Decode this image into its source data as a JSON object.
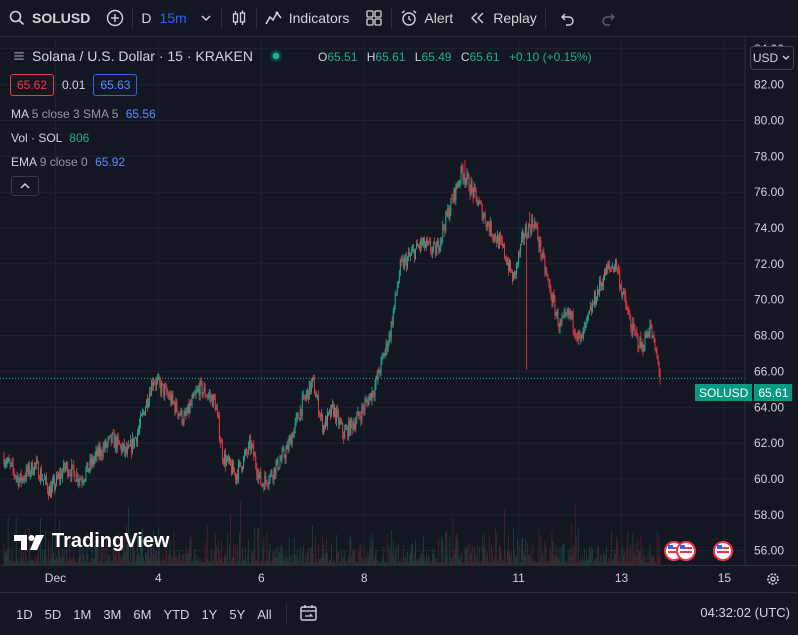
{
  "toolbar": {
    "symbol": "SOLUSD",
    "interval_d": "D",
    "interval_active": "15m",
    "indicators": "Indicators",
    "alert": "Alert",
    "replay": "Replay"
  },
  "legend": {
    "title": "Solana / U.S. Dollar · 15 · KRAKEN",
    "o_label": "O",
    "o": "65.51",
    "h_label": "H",
    "h": "65.61",
    "l_label": "L",
    "l": "65.49",
    "c_label": "C",
    "c": "65.61",
    "change": "+0.10 (+0.15%)",
    "bid": "65.62",
    "spread": "0.01",
    "ask": "65.63",
    "ma_name": "MA",
    "ma_params": "5 close 3 SMA 5",
    "ma_value": "65.56",
    "vol_name": "Vol · SOL",
    "vol_value": "806",
    "ema_name": "EMA",
    "ema_params": "9 close 0",
    "ema_value": "65.92"
  },
  "currency": "USD",
  "price_tag": {
    "symbol": "SOLUSD",
    "price": "65.61"
  },
  "brand": "TradingView",
  "bottombar": {
    "ranges": [
      "1D",
      "5D",
      "1M",
      "3M",
      "6M",
      "YTD",
      "1Y",
      "5Y",
      "All"
    ],
    "clock": "04:32:02 (UTC)"
  },
  "colors": {
    "up": "#22ab94",
    "down": "#f23645",
    "bg": "#131722",
    "grid": "#1f2330",
    "accent": "#2962ff"
  },
  "chart_data": {
    "type": "candlestick",
    "y_ticks": [
      56,
      58,
      60,
      62,
      64,
      66,
      68,
      70,
      72,
      74,
      76,
      78,
      80,
      82,
      84
    ],
    "y_tick_labels": [
      "56.00",
      "58.00",
      "60.00",
      "62.00",
      "64.00",
      "66.00",
      "68.00",
      "70.00",
      "72.00",
      "74.00",
      "76.00",
      "78.00",
      "80.00",
      "82.00",
      "84.00"
    ],
    "ylim": [
      55.2,
      84.6
    ],
    "x_labels": [
      {
        "label": "Dec",
        "day": 2
      },
      {
        "label": "4",
        "day": 4
      },
      {
        "label": "6",
        "day": 6
      },
      {
        "label": "8",
        "day": 8
      },
      {
        "label": "11",
        "day": 11
      },
      {
        "label": "13",
        "day": 13
      },
      {
        "label": "15",
        "day": 15
      }
    ],
    "xlim_days": [
      1.0,
      15.4
    ],
    "last_price": 65.61,
    "path": [
      [
        1.0,
        61.2
      ],
      [
        1.3,
        59.9
      ],
      [
        1.6,
        60.8
      ],
      [
        1.9,
        59.3
      ],
      [
        2.2,
        60.7
      ],
      [
        2.5,
        60.0
      ],
      [
        2.8,
        61.3
      ],
      [
        3.1,
        62.2
      ],
      [
        3.4,
        61.4
      ],
      [
        3.6,
        62.6
      ],
      [
        3.9,
        65.6
      ],
      [
        4.2,
        64.6
      ],
      [
        4.5,
        63.3
      ],
      [
        4.8,
        65.1
      ],
      [
        5.1,
        64.3
      ],
      [
        5.25,
        61.3
      ],
      [
        5.5,
        60.2
      ],
      [
        5.8,
        61.9
      ],
      [
        6.0,
        59.7
      ],
      [
        6.2,
        60.3
      ],
      [
        6.5,
        61.6
      ],
      [
        6.8,
        64.2
      ],
      [
        7.0,
        65.4
      ],
      [
        7.2,
        62.9
      ],
      [
        7.4,
        63.9
      ],
      [
        7.6,
        62.5
      ],
      [
        7.9,
        63.5
      ],
      [
        8.2,
        65.1
      ],
      [
        8.5,
        68.1
      ],
      [
        8.7,
        71.8
      ],
      [
        9.1,
        73.1
      ],
      [
        9.4,
        72.7
      ],
      [
        9.6,
        74.6
      ],
      [
        9.9,
        77.2
      ],
      [
        10.2,
        75.5
      ],
      [
        10.4,
        74.2
      ],
      [
        10.7,
        72.8
      ],
      [
        10.9,
        71.1
      ],
      [
        11.1,
        73.6
      ],
      [
        11.3,
        74.4
      ],
      [
        11.6,
        70.6
      ],
      [
        11.8,
        68.5
      ],
      [
        12.0,
        69.2
      ],
      [
        12.2,
        67.6
      ],
      [
        12.5,
        70.2
      ],
      [
        12.7,
        71.6
      ],
      [
        12.9,
        72.0
      ],
      [
        13.0,
        70.6
      ],
      [
        13.2,
        68.4
      ],
      [
        13.4,
        67.3
      ],
      [
        13.55,
        68.6
      ],
      [
        13.75,
        65.9
      ]
    ],
    "spikes": [
      {
        "day": 11.15,
        "low": 66.1
      },
      {
        "day": 11.22,
        "high": 74.9
      },
      {
        "day": 9.95,
        "high": 77.8
      }
    ]
  }
}
